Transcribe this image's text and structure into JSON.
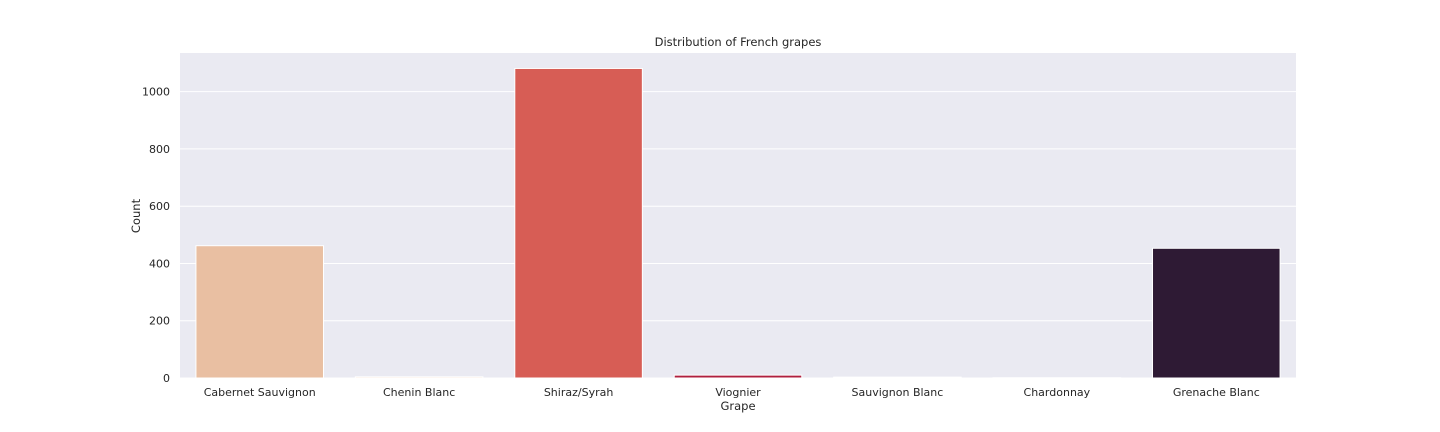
{
  "chart_data": {
    "type": "bar",
    "title": "Distribution of French grapes",
    "xlabel": "Grape",
    "ylabel": "Count",
    "categories": [
      "Cabernet Sauvignon",
      "Chenin Blanc",
      "Shiraz/Syrah",
      "Viognier",
      "Sauvignon Blanc",
      "Chardonnay",
      "Grenache Blanc"
    ],
    "values": [
      462,
      4,
      1081,
      10,
      3,
      1,
      453
    ],
    "colors": [
      "#e9bfa2",
      "#f0c9ab",
      "#d75d55",
      "#b0203f",
      "#8a1f49",
      "#5c1d4a",
      "#2e1a34"
    ],
    "ylim": [
      0,
      1135
    ],
    "yticks": [
      0,
      200,
      400,
      600,
      800,
      1000
    ],
    "grid": true,
    "legend": "none"
  }
}
